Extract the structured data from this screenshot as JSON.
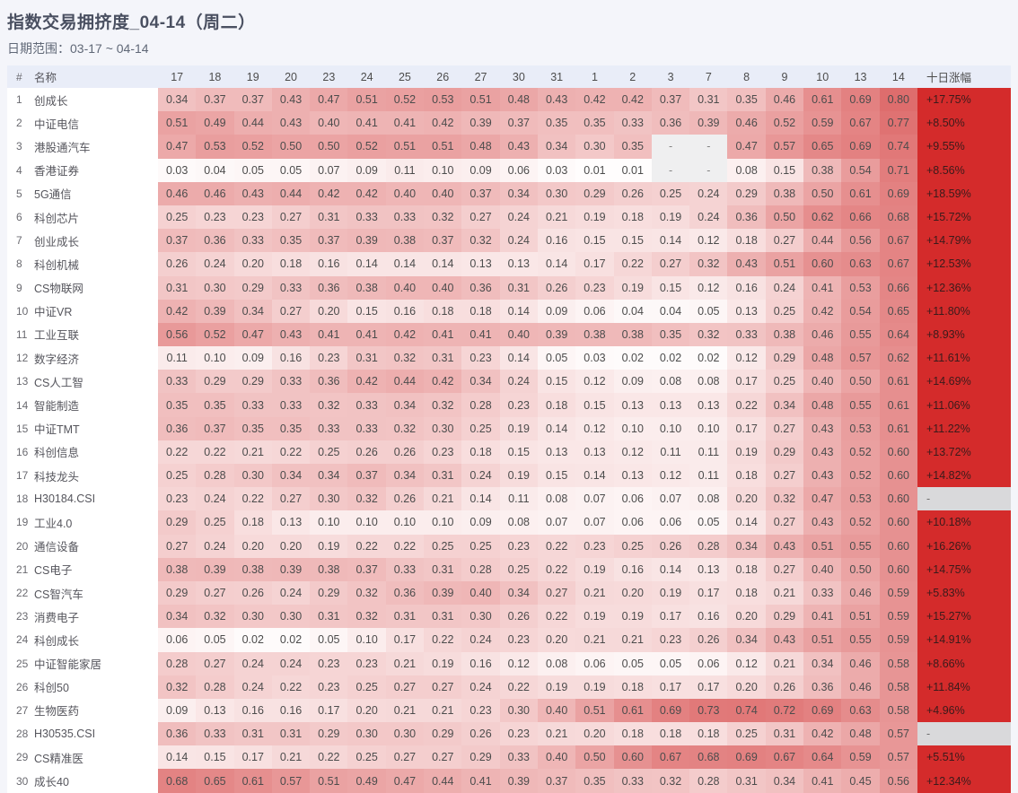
{
  "page": {
    "title": "指数交易拥挤度_04-14（周二）",
    "date_range": "日期范围：03-17 ~ 04-14"
  },
  "table_header": {
    "index": "#",
    "name": "名称",
    "ten_day_change": "十日涨幅"
  },
  "colors": {
    "page_bg": "#f4f5fa",
    "header_bg": "#e9edf8",
    "heat_low": "#ffffff",
    "heat_high": "#d64848",
    "change_positive_bg": "#d42b2b",
    "missing_cell_bg": "#efeff0",
    "missing_change_bg": "#d9d9db"
  },
  "chart_data": {
    "type": "heatmap",
    "title": "指数交易拥挤度_04-14（周二）",
    "subtitle": "日期范围：03-17 ~ 04-14",
    "columns": [
      "17",
      "18",
      "19",
      "20",
      "23",
      "24",
      "25",
      "26",
      "27",
      "30",
      "31",
      "1",
      "2",
      "3",
      "7",
      "8",
      "9",
      "10",
      "13",
      "14"
    ],
    "value_range": [
      0,
      1
    ],
    "color_scale": [
      "#ffffff",
      "#d64848"
    ],
    "missing_marker": "-",
    "series": [
      {
        "index": 1,
        "name": "创成长",
        "values": [
          0.34,
          0.37,
          0.37,
          0.43,
          0.47,
          0.51,
          0.52,
          0.53,
          0.51,
          0.48,
          0.43,
          0.42,
          0.42,
          0.37,
          0.31,
          0.35,
          0.46,
          0.61,
          0.69,
          0.8
        ],
        "ten_day_change": "+17.75%"
      },
      {
        "index": 2,
        "name": "中证电信",
        "values": [
          0.51,
          0.49,
          0.44,
          0.43,
          0.4,
          0.41,
          0.41,
          0.42,
          0.39,
          0.37,
          0.35,
          0.35,
          0.33,
          0.36,
          0.39,
          0.46,
          0.52,
          0.59,
          0.67,
          0.77
        ],
        "ten_day_change": "+8.50%"
      },
      {
        "index": 3,
        "name": "港股通汽车",
        "values": [
          0.47,
          0.53,
          0.52,
          0.5,
          0.5,
          0.52,
          0.51,
          0.51,
          0.48,
          0.43,
          0.34,
          0.3,
          0.35,
          null,
          null,
          0.47,
          0.57,
          0.65,
          0.69,
          0.74
        ],
        "ten_day_change": "+9.55%"
      },
      {
        "index": 4,
        "name": "香港证券",
        "values": [
          0.03,
          0.04,
          0.05,
          0.05,
          0.07,
          0.09,
          0.11,
          0.1,
          0.09,
          0.06,
          0.03,
          0.01,
          0.01,
          null,
          null,
          0.08,
          0.15,
          0.38,
          0.54,
          0.71
        ],
        "ten_day_change": "+8.56%"
      },
      {
        "index": 5,
        "name": "5G通信",
        "values": [
          0.46,
          0.46,
          0.43,
          0.44,
          0.42,
          0.42,
          0.4,
          0.4,
          0.37,
          0.34,
          0.3,
          0.29,
          0.26,
          0.25,
          0.24,
          0.29,
          0.38,
          0.5,
          0.61,
          0.69
        ],
        "ten_day_change": "+18.59%"
      },
      {
        "index": 6,
        "name": "科创芯片",
        "values": [
          0.25,
          0.23,
          0.23,
          0.27,
          0.31,
          0.33,
          0.33,
          0.32,
          0.27,
          0.24,
          0.21,
          0.19,
          0.18,
          0.19,
          0.24,
          0.36,
          0.5,
          0.62,
          0.66,
          0.68
        ],
        "ten_day_change": "+15.72%"
      },
      {
        "index": 7,
        "name": "创业成长",
        "values": [
          0.37,
          0.36,
          0.33,
          0.35,
          0.37,
          0.39,
          0.38,
          0.37,
          0.32,
          0.24,
          0.16,
          0.15,
          0.15,
          0.14,
          0.12,
          0.18,
          0.27,
          0.44,
          0.56,
          0.67
        ],
        "ten_day_change": "+14.79%"
      },
      {
        "index": 8,
        "name": "科创机械",
        "values": [
          0.26,
          0.24,
          0.2,
          0.18,
          0.16,
          0.14,
          0.14,
          0.14,
          0.13,
          0.13,
          0.14,
          0.17,
          0.22,
          0.27,
          0.32,
          0.43,
          0.51,
          0.6,
          0.63,
          0.67
        ],
        "ten_day_change": "+12.53%"
      },
      {
        "index": 9,
        "name": "CS物联网",
        "values": [
          0.31,
          0.3,
          0.29,
          0.33,
          0.36,
          0.38,
          0.4,
          0.4,
          0.36,
          0.31,
          0.26,
          0.23,
          0.19,
          0.15,
          0.12,
          0.16,
          0.24,
          0.41,
          0.53,
          0.66
        ],
        "ten_day_change": "+12.36%"
      },
      {
        "index": 10,
        "name": "中证VR",
        "values": [
          0.42,
          0.39,
          0.34,
          0.27,
          0.2,
          0.15,
          0.16,
          0.18,
          0.18,
          0.14,
          0.09,
          0.06,
          0.04,
          0.04,
          0.05,
          0.13,
          0.25,
          0.42,
          0.54,
          0.65
        ],
        "ten_day_change": "+11.80%"
      },
      {
        "index": 11,
        "name": "工业互联",
        "values": [
          0.56,
          0.52,
          0.47,
          0.43,
          0.41,
          0.41,
          0.42,
          0.41,
          0.41,
          0.4,
          0.39,
          0.38,
          0.38,
          0.35,
          0.32,
          0.33,
          0.38,
          0.46,
          0.55,
          0.64
        ],
        "ten_day_change": "+8.93%"
      },
      {
        "index": 12,
        "name": "数字经济",
        "values": [
          0.11,
          0.1,
          0.09,
          0.16,
          0.23,
          0.31,
          0.32,
          0.31,
          0.23,
          0.14,
          0.05,
          0.03,
          0.02,
          0.02,
          0.02,
          0.12,
          0.29,
          0.48,
          0.57,
          0.62
        ],
        "ten_day_change": "+11.61%"
      },
      {
        "index": 13,
        "name": "CS人工智",
        "values": [
          0.33,
          0.29,
          0.29,
          0.33,
          0.36,
          0.42,
          0.44,
          0.42,
          0.34,
          0.24,
          0.15,
          0.12,
          0.09,
          0.08,
          0.08,
          0.17,
          0.25,
          0.4,
          0.5,
          0.61
        ],
        "ten_day_change": "+14.69%"
      },
      {
        "index": 14,
        "name": "智能制造",
        "values": [
          0.35,
          0.35,
          0.33,
          0.33,
          0.32,
          0.33,
          0.34,
          0.32,
          0.28,
          0.23,
          0.18,
          0.15,
          0.13,
          0.13,
          0.13,
          0.22,
          0.34,
          0.48,
          0.55,
          0.61
        ],
        "ten_day_change": "+11.06%"
      },
      {
        "index": 15,
        "name": "中证TMT",
        "values": [
          0.36,
          0.37,
          0.35,
          0.35,
          0.33,
          0.33,
          0.32,
          0.3,
          0.25,
          0.19,
          0.14,
          0.12,
          0.1,
          0.1,
          0.1,
          0.17,
          0.27,
          0.43,
          0.53,
          0.61
        ],
        "ten_day_change": "+11.22%"
      },
      {
        "index": 16,
        "name": "科创信息",
        "values": [
          0.22,
          0.22,
          0.21,
          0.22,
          0.25,
          0.26,
          0.26,
          0.23,
          0.18,
          0.15,
          0.13,
          0.13,
          0.12,
          0.11,
          0.11,
          0.19,
          0.29,
          0.43,
          0.52,
          0.6
        ],
        "ten_day_change": "+13.72%"
      },
      {
        "index": 17,
        "name": "科技龙头",
        "values": [
          0.25,
          0.28,
          0.3,
          0.34,
          0.34,
          0.37,
          0.34,
          0.31,
          0.24,
          0.19,
          0.15,
          0.14,
          0.13,
          0.12,
          0.11,
          0.18,
          0.27,
          0.43,
          0.52,
          0.6
        ],
        "ten_day_change": "+14.82%"
      },
      {
        "index": 18,
        "name": "H30184.CSI",
        "values": [
          0.23,
          0.24,
          0.22,
          0.27,
          0.3,
          0.32,
          0.26,
          0.21,
          0.14,
          0.11,
          0.08,
          0.07,
          0.06,
          0.07,
          0.08,
          0.2,
          0.32,
          0.47,
          0.53,
          0.6
        ],
        "ten_day_change": null
      },
      {
        "index": 19,
        "name": "工业4.0",
        "values": [
          0.29,
          0.25,
          0.18,
          0.13,
          0.1,
          0.1,
          0.1,
          0.1,
          0.09,
          0.08,
          0.07,
          0.07,
          0.06,
          0.06,
          0.05,
          0.14,
          0.27,
          0.43,
          0.52,
          0.6
        ],
        "ten_day_change": "+10.18%"
      },
      {
        "index": 20,
        "name": "通信设备",
        "values": [
          0.27,
          0.24,
          0.2,
          0.2,
          0.19,
          0.22,
          0.22,
          0.25,
          0.25,
          0.23,
          0.22,
          0.23,
          0.25,
          0.26,
          0.28,
          0.34,
          0.43,
          0.51,
          0.55,
          0.6
        ],
        "ten_day_change": "+16.26%"
      },
      {
        "index": 21,
        "name": "CS电子",
        "values": [
          0.38,
          0.39,
          0.38,
          0.39,
          0.38,
          0.37,
          0.33,
          0.31,
          0.28,
          0.25,
          0.22,
          0.19,
          0.16,
          0.14,
          0.13,
          0.18,
          0.27,
          0.4,
          0.5,
          0.6
        ],
        "ten_day_change": "+14.75%"
      },
      {
        "index": 22,
        "name": "CS智汽车",
        "values": [
          0.29,
          0.27,
          0.26,
          0.24,
          0.29,
          0.32,
          0.36,
          0.39,
          0.4,
          0.34,
          0.27,
          0.21,
          0.2,
          0.19,
          0.17,
          0.18,
          0.21,
          0.33,
          0.46,
          0.59
        ],
        "ten_day_change": "+5.83%"
      },
      {
        "index": 23,
        "name": "消费电子",
        "values": [
          0.34,
          0.32,
          0.3,
          0.3,
          0.31,
          0.32,
          0.31,
          0.31,
          0.3,
          0.26,
          0.22,
          0.19,
          0.19,
          0.17,
          0.16,
          0.2,
          0.29,
          0.41,
          0.51,
          0.59
        ],
        "ten_day_change": "+15.27%"
      },
      {
        "index": 24,
        "name": "科创成长",
        "values": [
          0.06,
          0.05,
          0.02,
          0.02,
          0.05,
          0.1,
          0.17,
          0.22,
          0.24,
          0.23,
          0.2,
          0.21,
          0.21,
          0.23,
          0.26,
          0.34,
          0.43,
          0.51,
          0.55,
          0.59
        ],
        "ten_day_change": "+14.91%"
      },
      {
        "index": 25,
        "name": "中证智能家居",
        "values": [
          0.28,
          0.27,
          0.24,
          0.24,
          0.23,
          0.23,
          0.21,
          0.19,
          0.16,
          0.12,
          0.08,
          0.06,
          0.05,
          0.05,
          0.06,
          0.12,
          0.21,
          0.34,
          0.46,
          0.58
        ],
        "ten_day_change": "+8.66%"
      },
      {
        "index": 26,
        "name": "科创50",
        "values": [
          0.32,
          0.28,
          0.24,
          0.22,
          0.23,
          0.25,
          0.27,
          0.27,
          0.24,
          0.22,
          0.19,
          0.19,
          0.18,
          0.17,
          0.17,
          0.2,
          0.26,
          0.36,
          0.46,
          0.58
        ],
        "ten_day_change": "+11.84%"
      },
      {
        "index": 27,
        "name": "生物医药",
        "values": [
          0.09,
          0.13,
          0.16,
          0.16,
          0.17,
          0.2,
          0.21,
          0.21,
          0.23,
          0.3,
          0.4,
          0.51,
          0.61,
          0.69,
          0.73,
          0.74,
          0.72,
          0.69,
          0.63,
          0.58
        ],
        "ten_day_change": "+4.96%"
      },
      {
        "index": 28,
        "name": "H30535.CSI",
        "values": [
          0.36,
          0.33,
          0.31,
          0.31,
          0.29,
          0.3,
          0.3,
          0.29,
          0.26,
          0.23,
          0.21,
          0.2,
          0.18,
          0.18,
          0.18,
          0.25,
          0.31,
          0.42,
          0.48,
          0.57
        ],
        "ten_day_change": null
      },
      {
        "index": 29,
        "name": "CS精准医",
        "values": [
          0.14,
          0.15,
          0.17,
          0.21,
          0.22,
          0.25,
          0.27,
          0.27,
          0.29,
          0.33,
          0.4,
          0.5,
          0.6,
          0.67,
          0.68,
          0.69,
          0.67,
          0.64,
          0.59,
          0.57
        ],
        "ten_day_change": "+5.51%"
      },
      {
        "index": 30,
        "name": "成长40",
        "values": [
          0.68,
          0.65,
          0.61,
          0.57,
          0.51,
          0.49,
          0.47,
          0.44,
          0.41,
          0.39,
          0.37,
          0.35,
          0.33,
          0.32,
          0.28,
          0.31,
          0.34,
          0.41,
          0.45,
          0.56
        ],
        "ten_day_change": "+12.34%"
      }
    ]
  }
}
